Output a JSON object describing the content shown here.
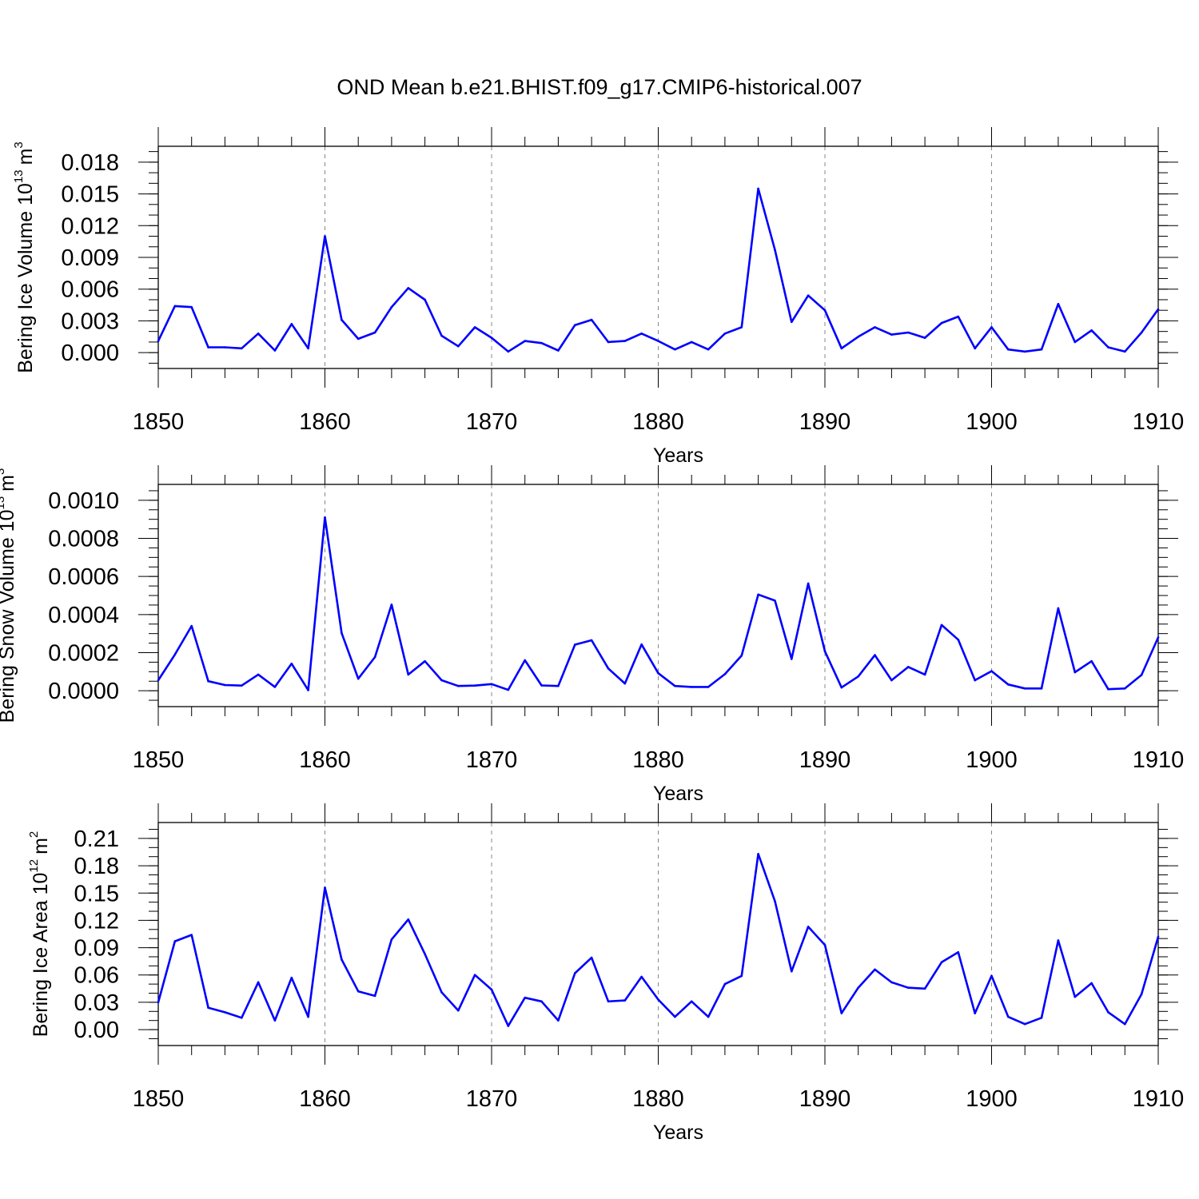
{
  "title": "OND Mean b.e21.BHIST.f09_g17.CMIP6-historical.007",
  "line_color": "#0000ff",
  "chart_data": [
    {
      "type": "line",
      "ylabel_text": "Bering Ice Volume 10",
      "ylabel_exp": "13",
      "ylabel_unit": "m",
      "ylabel_unit_exp": "3",
      "xlabel": "Years",
      "xlim": [
        1850,
        1910
      ],
      "ylim": [
        -0.0015,
        0.0195
      ],
      "yticks": [
        0.0,
        0.003,
        0.006,
        0.009,
        0.012,
        0.015,
        0.018
      ],
      "ytick_labels": [
        "0.000",
        "0.003",
        "0.006",
        "0.009",
        "0.012",
        "0.015",
        "0.018"
      ],
      "yminor_step": 0.001,
      "x": [
        1850,
        1851,
        1852,
        1853,
        1854,
        1855,
        1856,
        1857,
        1858,
        1859,
        1860,
        1861,
        1862,
        1863,
        1864,
        1865,
        1866,
        1867,
        1868,
        1869,
        1870,
        1871,
        1872,
        1873,
        1874,
        1875,
        1876,
        1877,
        1878,
        1879,
        1880,
        1881,
        1882,
        1883,
        1884,
        1885,
        1886,
        1887,
        1888,
        1889,
        1890,
        1891,
        1892,
        1893,
        1894,
        1895,
        1896,
        1897,
        1898,
        1899,
        1900,
        1901,
        1902,
        1903,
        1904,
        1905,
        1906,
        1907,
        1908,
        1909,
        1910
      ],
      "values": [
        0.0011,
        0.0044,
        0.0043,
        0.0005,
        0.0005,
        0.0004,
        0.0018,
        0.0002,
        0.0027,
        0.0004,
        0.011,
        0.0031,
        0.0013,
        0.0019,
        0.0043,
        0.0061,
        0.005,
        0.0016,
        0.0006,
        0.0024,
        0.0014,
        0.0001,
        0.0011,
        0.0009,
        0.0002,
        0.0026,
        0.0031,
        0.001,
        0.0011,
        0.0018,
        0.0011,
        0.0003,
        0.001,
        0.0003,
        0.0018,
        0.0024,
        0.0155,
        0.0097,
        0.0029,
        0.0054,
        0.004,
        0.0004,
        0.0015,
        0.0024,
        0.0017,
        0.0019,
        0.0014,
        0.0028,
        0.0034,
        0.0004,
        0.0024,
        0.0003,
        0.0001,
        0.0003,
        0.0046,
        0.001,
        0.0021,
        0.0005,
        0.0001,
        0.0019,
        0.0041
      ]
    },
    {
      "type": "line",
      "ylabel_text": "Bering Snow Volume 10",
      "ylabel_exp": "13",
      "ylabel_unit": "m",
      "ylabel_unit_exp": "3",
      "xlabel": "Years",
      "xlim": [
        1850,
        1910
      ],
      "ylim": [
        -8.33e-05,
        0.0010833
      ],
      "yticks": [
        0.0,
        0.0002,
        0.0004,
        0.0006,
        0.0008,
        0.001
      ],
      "ytick_labels": [
        "0.0000",
        "0.0002",
        "0.0004",
        "0.0006",
        "0.0008",
        "0.0010"
      ],
      "yminor_step": 5e-05,
      "x": [
        1850,
        1851,
        1852,
        1853,
        1854,
        1855,
        1856,
        1857,
        1858,
        1859,
        1860,
        1861,
        1862,
        1863,
        1864,
        1865,
        1866,
        1867,
        1868,
        1869,
        1870,
        1871,
        1872,
        1873,
        1874,
        1875,
        1876,
        1877,
        1878,
        1879,
        1880,
        1881,
        1882,
        1883,
        1884,
        1885,
        1886,
        1887,
        1888,
        1889,
        1890,
        1891,
        1892,
        1893,
        1894,
        1895,
        1896,
        1897,
        1898,
        1899,
        1900,
        1901,
        1902,
        1903,
        1904,
        1905,
        1906,
        1907,
        1908,
        1909,
        1910
      ],
      "values": [
        5.5e-05,
        0.00019,
        0.00034,
        5e-05,
        3e-05,
        2.7e-05,
        8.5e-05,
        2e-05,
        0.000142,
        3e-06,
        0.00091,
        0.000303,
        6.3e-05,
        0.000177,
        0.000452,
        8.5e-05,
        0.000155,
        5.5e-05,
        2.5e-05,
        2.7e-05,
        3.5e-05,
        5e-06,
        0.00016,
        2.8e-05,
        2.5e-05,
        0.000242,
        0.000265,
        0.000117,
        3.8e-05,
        0.000243,
        9.2e-05,
        2.5e-05,
        2e-05,
        2e-05,
        8.7e-05,
        0.000185,
        0.000505,
        0.000473,
        0.000167,
        0.000563,
        0.000207,
        1.7e-05,
        7.5e-05,
        0.000187,
        5.5e-05,
        0.000125,
        8.5e-05,
        0.000345,
        0.000268,
        5.5e-05,
        0.000103,
        3.3e-05,
        1.2e-05,
        1.2e-05,
        0.000433,
        9.7e-05,
        0.000155,
        8e-06,
        1.2e-05,
        8.3e-05,
        0.00028
      ]
    },
    {
      "type": "line",
      "ylabel_text": "Bering Ice Area 10",
      "ylabel_exp": "12",
      "ylabel_unit": "m",
      "ylabel_unit_exp": "2",
      "xlabel": "Years",
      "xlim": [
        1850,
        1910
      ],
      "ylim": [
        -0.0175,
        0.2275
      ],
      "yticks": [
        0.0,
        0.03,
        0.06,
        0.09,
        0.12,
        0.15,
        0.18,
        0.21
      ],
      "ytick_labels": [
        "0.00",
        "0.03",
        "0.06",
        "0.09",
        "0.12",
        "0.15",
        "0.18",
        "0.21"
      ],
      "yminor_step": 0.01,
      "x": [
        1850,
        1851,
        1852,
        1853,
        1854,
        1855,
        1856,
        1857,
        1858,
        1859,
        1860,
        1861,
        1862,
        1863,
        1864,
        1865,
        1866,
        1867,
        1868,
        1869,
        1870,
        1871,
        1872,
        1873,
        1874,
        1875,
        1876,
        1877,
        1878,
        1879,
        1880,
        1881,
        1882,
        1883,
        1884,
        1885,
        1886,
        1887,
        1888,
        1889,
        1890,
        1891,
        1892,
        1893,
        1894,
        1895,
        1896,
        1897,
        1898,
        1899,
        1900,
        1901,
        1902,
        1903,
        1904,
        1905,
        1906,
        1907,
        1908,
        1909,
        1910
      ],
      "values": [
        0.03,
        0.097,
        0.104,
        0.024,
        0.019,
        0.013,
        0.052,
        0.01,
        0.057,
        0.014,
        0.156,
        0.077,
        0.042,
        0.037,
        0.099,
        0.121,
        0.083,
        0.041,
        0.021,
        0.06,
        0.044,
        0.004,
        0.035,
        0.031,
        0.01,
        0.062,
        0.079,
        0.031,
        0.032,
        0.058,
        0.033,
        0.014,
        0.031,
        0.014,
        0.05,
        0.059,
        0.193,
        0.141,
        0.064,
        0.113,
        0.093,
        0.018,
        0.046,
        0.066,
        0.052,
        0.046,
        0.045,
        0.074,
        0.085,
        0.018,
        0.059,
        0.014,
        0.006,
        0.013,
        0.098,
        0.036,
        0.051,
        0.019,
        0.006,
        0.039,
        0.102
      ]
    }
  ]
}
